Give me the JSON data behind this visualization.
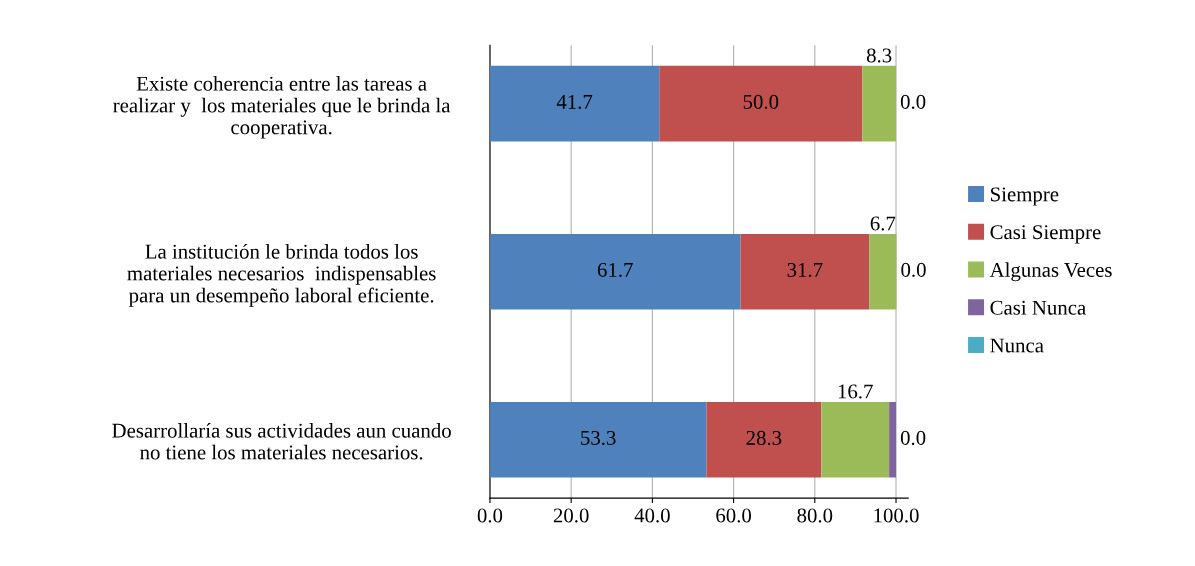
{
  "chart_data": {
    "type": "bar",
    "orientation": "horizontal",
    "stacked": true,
    "categories": [
      "Existe coherencia entre las tareas a\nrealizar y  los materiales que le brinda la\ncooperativa.",
      "La institución le brinda todos los\nmateriales necesarios  indispensables\npara un desempeño laboral eficiente.",
      "Desarrollaría sus actividades aun cuando\nno tiene los materiales necesarios."
    ],
    "series": [
      {
        "name": "Siempre",
        "color": "#4f81bd",
        "values": [
          41.7,
          61.7,
          53.3
        ],
        "value_labels": [
          "41.7",
          "61.7",
          "53.3"
        ]
      },
      {
        "name": "Casi Siempre",
        "color": "#c0504d",
        "values": [
          50.0,
          31.7,
          28.3
        ],
        "value_labels": [
          "50.0",
          "31.7",
          "28.3"
        ]
      },
      {
        "name": "Algunas Veces",
        "color": "#9bbb59",
        "values": [
          8.3,
          6.7,
          16.7
        ],
        "value_labels": [
          "8.3",
          "6.7",
          "16.7"
        ]
      },
      {
        "name": "Casi Nunca",
        "color": "#8064a2",
        "values": [
          0.0,
          0.0,
          1.7
        ],
        "value_labels": [
          null,
          null,
          null
        ]
      },
      {
        "name": "Nunca",
        "color": "#4bacc6",
        "values": [
          0.0,
          0.0,
          0.0
        ],
        "value_labels": [
          "0.0",
          "0.0",
          "0.0"
        ]
      }
    ],
    "xlim": [
      0,
      103
    ],
    "xticks": [
      {
        "value": 0,
        "label": "0.0"
      },
      {
        "value": 20,
        "label": "20.0"
      },
      {
        "value": 40,
        "label": "40.0"
      },
      {
        "value": 60,
        "label": "60.0"
      },
      {
        "value": 80,
        "label": "80.0"
      },
      {
        "value": 100,
        "label": "100.0"
      }
    ],
    "grid": "x",
    "legend": "right"
  }
}
